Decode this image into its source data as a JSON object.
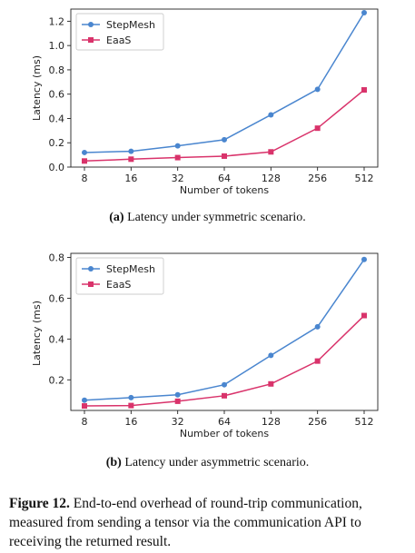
{
  "charts": [
    {
      "ylabel": "Latency (ms)",
      "xlabel": "Number of tokens",
      "caption_label": "(a)",
      "caption_text": "Latency under symmetric scenario.",
      "yticks": [
        "0.0",
        "0.2",
        "0.4",
        "0.6",
        "0.8",
        "1.0",
        "1.2"
      ]
    },
    {
      "ylabel": "Latency (ms)",
      "xlabel": "Number of tokens",
      "caption_label": "(b)",
      "caption_text": "Latency under asymmetric scenario.",
      "yticks": [
        "0.2",
        "0.4",
        "0.6",
        "0.8"
      ]
    }
  ],
  "figure_caption": {
    "label": "Figure 12.",
    "text": " End-to-end overhead of round-trip communication, measured from sending a tensor via the communication API to receiving the returned result."
  },
  "chart_data": [
    {
      "type": "line",
      "categories": [
        "8",
        "16",
        "32",
        "64",
        "128",
        "256",
        "512"
      ],
      "series": [
        {
          "name": "StepMesh",
          "color": "#4a86cf",
          "marker": "circle",
          "values": [
            0.12,
            0.13,
            0.175,
            0.225,
            0.43,
            0.64,
            1.27
          ]
        },
        {
          "name": "EaaS",
          "color": "#d9336b",
          "marker": "square",
          "values": [
            0.05,
            0.065,
            0.078,
            0.09,
            0.125,
            0.32,
            0.635
          ]
        }
      ],
      "ylim": [
        0,
        1.3
      ],
      "yticks": [
        0,
        0.2,
        0.4,
        0.6,
        0.8,
        1.0,
        1.2
      ],
      "xlabel": "Number of tokens",
      "ylabel": "Latency (ms)",
      "legend": "top-left",
      "grid": false
    },
    {
      "type": "line",
      "categories": [
        "8",
        "16",
        "32",
        "64",
        "128",
        "256",
        "512"
      ],
      "series": [
        {
          "name": "StepMesh",
          "color": "#4a86cf",
          "marker": "circle",
          "values": [
            0.1,
            0.113,
            0.127,
            0.176,
            0.32,
            0.46,
            0.79
          ]
        },
        {
          "name": "EaaS",
          "color": "#d9336b",
          "marker": "square",
          "values": [
            0.072,
            0.074,
            0.095,
            0.122,
            0.18,
            0.292,
            0.515
          ]
        }
      ],
      "ylim": [
        0.05,
        0.82
      ],
      "yticks": [
        0.2,
        0.4,
        0.6,
        0.8
      ],
      "xlabel": "Number of tokens",
      "ylabel": "Latency (ms)",
      "legend": "top-left",
      "grid": false
    }
  ]
}
